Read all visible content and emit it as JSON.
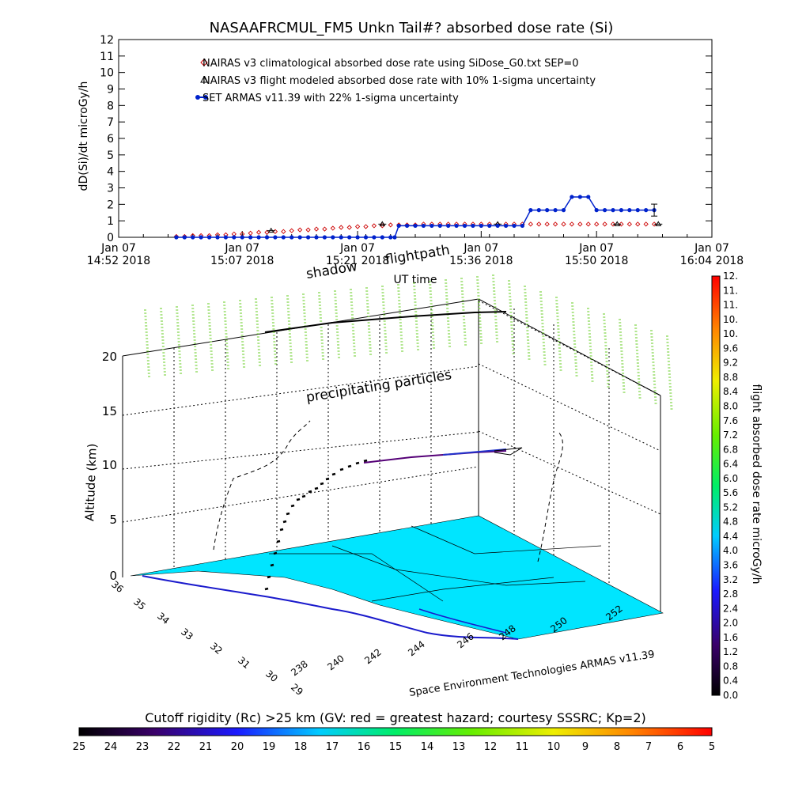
{
  "chart_data": [
    {
      "type": "line",
      "title": "NASAAFRCMUL_FM5 Unkn Tail#? absorbed dose rate (Si)",
      "ylabel": "dD(Si)/dt microGy/h",
      "xlabel": "UT time",
      "ylim": [
        0,
        12
      ],
      "y_ticks": [
        "0",
        "1",
        "2",
        "3",
        "4",
        "5",
        "6",
        "7",
        "8",
        "9",
        "10",
        "11",
        "12"
      ],
      "x_ticks": [
        {
          "l1": "Jan 07",
          "l2": "14:52 2018",
          "t": 0
        },
        {
          "l1": "Jan 07",
          "l2": "15:07 2018",
          "t": 15
        },
        {
          "l1": "Jan 07",
          "l2": "15:21 2018",
          "t": 29
        },
        {
          "l1": "Jan 07",
          "l2": "15:36 2018",
          "t": 44
        },
        {
          "l1": "Jan 07",
          "l2": "15:50 2018",
          "t": 58
        },
        {
          "l1": "Jan 07",
          "l2": "16:04 2018",
          "t": 72
        }
      ],
      "series": [
        {
          "name": "NAIRAS v3 climatological absorbed dose rate using SiDose_G0.txt SEP=0",
          "marker": "diamond",
          "color": "#cc0000",
          "t": [
            7,
            8,
            9,
            10,
            11,
            12,
            13,
            14,
            15,
            16,
            17,
            18,
            19,
            20,
            21,
            22,
            23,
            24,
            25,
            26,
            27,
            28,
            29,
            30,
            31,
            32,
            33,
            34,
            35,
            36,
            37,
            38,
            39,
            40,
            41,
            42,
            43,
            44,
            45,
            46,
            47,
            48,
            49,
            50,
            51,
            52,
            53,
            54,
            55,
            56,
            57,
            58,
            59,
            60,
            61,
            62,
            63,
            64,
            65
          ],
          "values": [
            0.05,
            0.05,
            0.1,
            0.1,
            0.1,
            0.15,
            0.15,
            0.2,
            0.2,
            0.25,
            0.3,
            0.3,
            0.35,
            0.35,
            0.4,
            0.45,
            0.45,
            0.5,
            0.5,
            0.55,
            0.6,
            0.6,
            0.65,
            0.65,
            0.7,
            0.7,
            0.75,
            0.75,
            0.75,
            0.75,
            0.8,
            0.8,
            0.8,
            0.8,
            0.8,
            0.8,
            0.8,
            0.8,
            0.8,
            0.8,
            0.8,
            0.8,
            0.8,
            0.8,
            0.8,
            0.8,
            0.8,
            0.8,
            0.8,
            0.8,
            0.8,
            0.8,
            0.8,
            0.8,
            0.8,
            0.8,
            0.8,
            0.8,
            0.8
          ]
        },
        {
          "name": "NAIRAS v3 flight modeled absorbed dose rate with 10% 1-sigma uncertainty",
          "marker": "triangle",
          "color": "#000000",
          "t": [
            18.5,
            32,
            46,
            60.5,
            65.5
          ],
          "values": [
            0.4,
            0.8,
            0.8,
            0.8,
            0.8
          ]
        },
        {
          "name": "SET ARMAS v11.39 with 22% 1-sigma uncertainty",
          "marker": "dot",
          "color": "#0022cc",
          "t": [
            7,
            8,
            9,
            10,
            11,
            12,
            13,
            14,
            15,
            16,
            17,
            18,
            19,
            20,
            21,
            22,
            23,
            24,
            25,
            26,
            27,
            28,
            29,
            30,
            31,
            32,
            33,
            33.5,
            34,
            35,
            36,
            37,
            38,
            39,
            40,
            41,
            42,
            43,
            44,
            45,
            46,
            47,
            48,
            49,
            50,
            51,
            52,
            53,
            54,
            55,
            56,
            57,
            58,
            59,
            60,
            61,
            62,
            63,
            64,
            65
          ],
          "values": [
            0,
            0,
            0,
            0,
            0,
            0,
            0,
            0,
            0,
            0,
            0,
            0,
            0,
            0,
            0,
            0,
            0,
            0,
            0,
            0,
            0,
            0,
            0,
            0,
            0,
            0,
            0,
            0,
            0.7,
            0.7,
            0.7,
            0.7,
            0.7,
            0.7,
            0.7,
            0.7,
            0.7,
            0.7,
            0.7,
            0.7,
            0.7,
            0.7,
            0.7,
            0.7,
            1.65,
            1.65,
            1.65,
            1.65,
            1.65,
            2.45,
            2.45,
            2.45,
            1.65,
            1.65,
            1.65,
            1.65,
            1.65,
            1.65,
            1.65,
            1.65
          ]
        }
      ]
    },
    {
      "type": "scatter",
      "subtype": "3d-flight-path",
      "zlabel": "Altitude (km)",
      "z_ticks": [
        "0",
        "5",
        "10",
        "15",
        "20"
      ],
      "lat_ticks": [
        "36",
        "35",
        "34",
        "33",
        "32",
        "31",
        "30",
        "29"
      ],
      "lon_ticks": [
        "238",
        "240",
        "242",
        "244",
        "246",
        "248",
        "250",
        "252"
      ],
      "annotations": [
        "shadow",
        "flightpath",
        "precipitating particles"
      ],
      "footer": "Space Environment Technologies ARMAS v11.39",
      "flight_colorbar": {
        "label": "flight absorbed dose rate microGy/h",
        "ticks": [
          "0.0",
          "0.4",
          "0.8",
          "1.2",
          "1.6",
          "2.0",
          "2.4",
          "2.8",
          "3.2",
          "3.6",
          "4.0",
          "4.4",
          "4.8",
          "5.2",
          "5.6",
          "6.0",
          "6.4",
          "6.8",
          "7.2",
          "7.6",
          "8.0",
          "8.4",
          "8.8",
          "9.2",
          "9.6",
          "10.",
          "10.",
          "11.",
          "11.",
          "12."
        ]
      },
      "cutoff_colorbar": {
        "label": "Cutoff rigidity (Rc) >25 km (GV: red = greatest hazard; courtesy SSSRC; Kp=2)",
        "ticks": [
          "25",
          "24",
          "23",
          "22",
          "21",
          "20",
          "19",
          "18",
          "17",
          "16",
          "15",
          "14",
          "13",
          "12",
          "11",
          "10",
          "9",
          "8",
          "7",
          "6",
          "5"
        ]
      }
    }
  ]
}
